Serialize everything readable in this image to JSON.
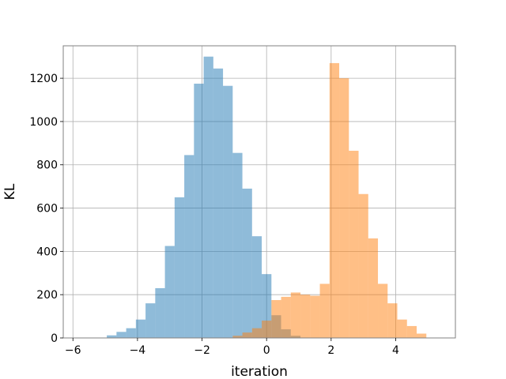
{
  "chart_data": {
    "type": "bar",
    "subtype": "overlapping-histogram",
    "title": "",
    "xlabel": "iteration",
    "ylabel": "KL",
    "xlim": [
      -6.3,
      5.85
    ],
    "ylim": [
      0,
      1350
    ],
    "xticks": [
      -6,
      -4,
      -2,
      0,
      2,
      4
    ],
    "xtick_labels": [
      "−6",
      "−4",
      "−2",
      "0",
      "2",
      "4"
    ],
    "yticks": [
      0,
      200,
      400,
      600,
      800,
      1000,
      1200
    ],
    "ytick_labels": [
      "0",
      "200",
      "400",
      "600",
      "800",
      "1000",
      "1200"
    ],
    "grid": true,
    "bin_width": 0.3,
    "series": [
      {
        "color": "#1f77b4",
        "opacity": 0.5,
        "bins_start": [
          -4.95,
          -4.65,
          -4.35,
          -4.05,
          -3.75,
          -3.45,
          -3.15,
          -2.85,
          -2.55,
          -2.25,
          -1.95,
          -1.65,
          -1.35,
          -1.05,
          -0.75,
          -0.45,
          -0.15,
          0.15,
          0.45,
          0.75
        ],
        "values": [
          12,
          28,
          45,
          85,
          160,
          230,
          425,
          650,
          845,
          1175,
          1300,
          1245,
          1165,
          855,
          690,
          470,
          295,
          105,
          40,
          10
        ]
      },
      {
        "color": "#ff7f0e",
        "opacity": 0.5,
        "bins_start": [
          -1.05,
          -0.75,
          -0.45,
          -0.15,
          0.15,
          0.45,
          0.75,
          1.05,
          1.35,
          1.65,
          1.95,
          2.25,
          2.55,
          2.85,
          3.15,
          3.45,
          3.75,
          4.05,
          4.35,
          4.65
        ],
        "values": [
          10,
          25,
          45,
          80,
          175,
          190,
          210,
          200,
          195,
          250,
          1270,
          1200,
          865,
          665,
          460,
          250,
          160,
          85,
          55,
          20
        ]
      }
    ]
  }
}
